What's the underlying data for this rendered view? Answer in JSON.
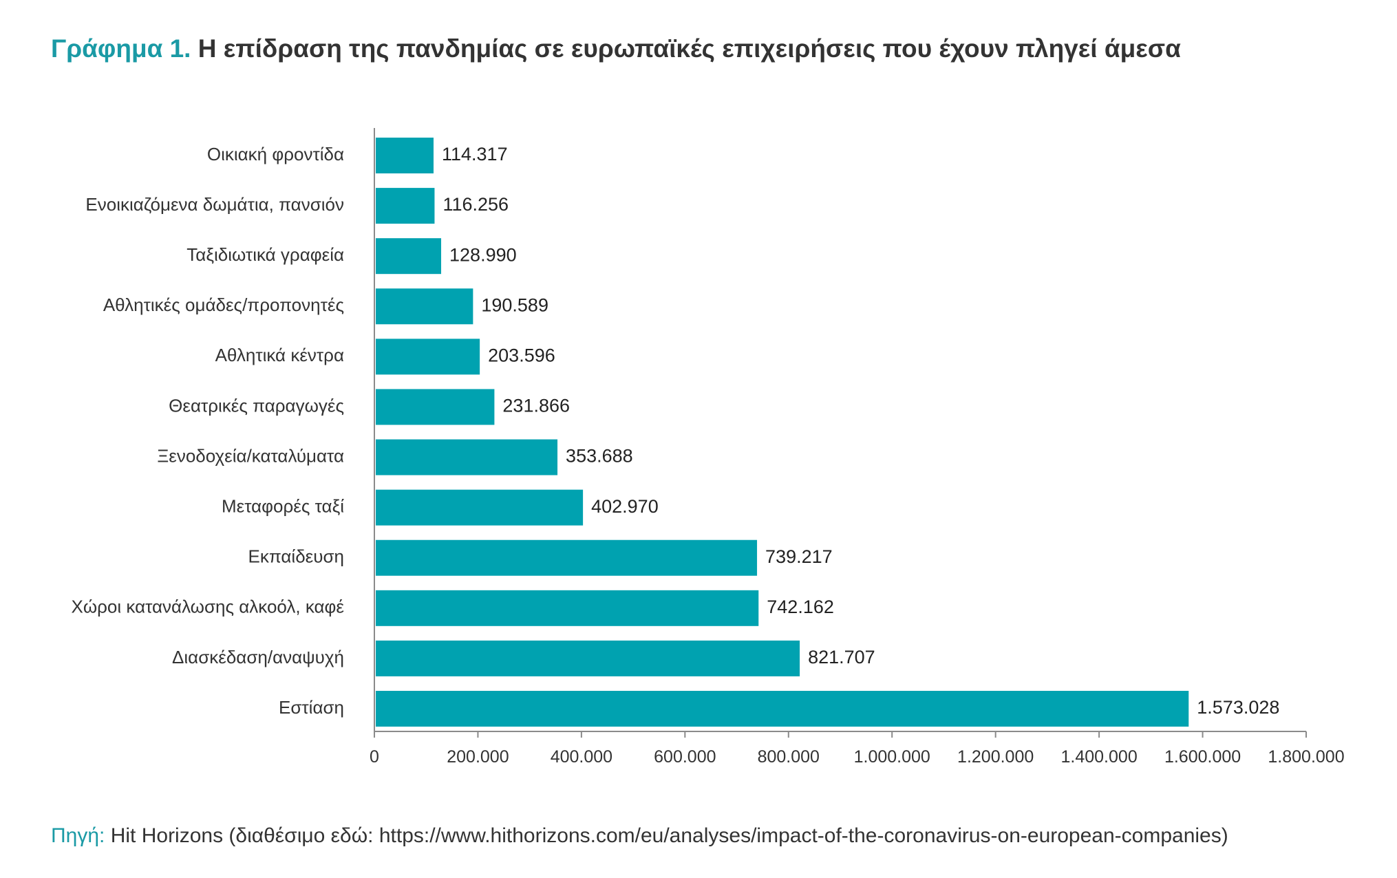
{
  "header": {
    "label": "Γράφημα 1.",
    "title": "Η επίδραση της πανδημίας σε ευρωπαϊκές επιχειρήσεις που έχουν πληγεί άμεσα"
  },
  "source": {
    "label": "Πηγή:",
    "text": "Hit Horizons (διαθέσιμο εδώ: https://www.hithorizons.com/eu/analyses/impact-of-the-coronavirus-on-european-companies)"
  },
  "colors": {
    "bar": "#00a2b0",
    "accent": "#1a9aa5",
    "axis": "#8a8a8a"
  },
  "chart_data": {
    "type": "bar",
    "orientation": "horizontal",
    "categories": [
      "Οικιακή φροντίδα",
      "Ενοικιαζόμενα δωμάτια, πανσιόν",
      "Ταξιδιωτικά γραφεία",
      "Αθλητικές ομάδες/προπονητές",
      "Αθλητικά κέντρα",
      "Θεατρικές παραγωγές",
      "Ξενοδοχεία/καταλύματα",
      "Μεταφορές ταξί",
      "Εκπαίδευση",
      "Χώροι κατανάλωσης αλκοόλ, καφέ",
      "Διασκέδαση/αναψυχή",
      "Εστίαση"
    ],
    "values": [
      114317,
      116256,
      128990,
      190589,
      203596,
      231866,
      353688,
      402970,
      739217,
      742162,
      821707,
      1573028
    ],
    "value_labels": [
      "114.317",
      "116.256",
      "128.990",
      "190.589",
      "203.596",
      "231.866",
      "353.688",
      "402.970",
      "739.217",
      "742.162",
      "821.707",
      "1.573.028"
    ],
    "xlim": [
      0,
      1800000
    ],
    "xticks": [
      0,
      200000,
      400000,
      600000,
      800000,
      1000000,
      1200000,
      1400000,
      1600000,
      1800000
    ],
    "xtick_labels": [
      "0",
      "200.000",
      "400.000",
      "600.000",
      "800.000",
      "1.000.000",
      "1.200.000",
      "1.400.000",
      "1.600.000",
      "1.800.000"
    ],
    "grid": false,
    "legend": "none"
  }
}
